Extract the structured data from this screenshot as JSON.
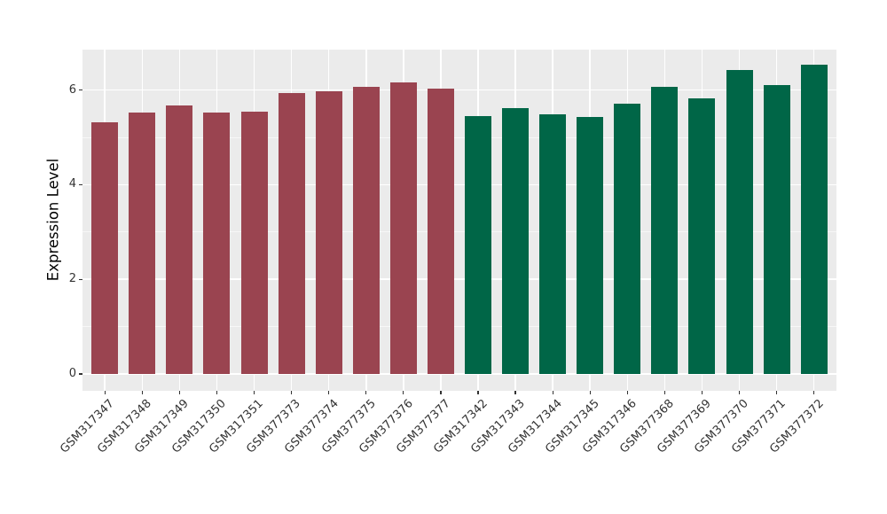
{
  "chart_data": {
    "type": "bar",
    "title": "",
    "xlabel": "",
    "ylabel": "Expression Level",
    "categories": [
      "GSM317347",
      "GSM317348",
      "GSM317349",
      "GSM317350",
      "GSM317351",
      "GSM377373",
      "GSM377374",
      "GSM377375",
      "GSM377376",
      "GSM377377",
      "GSM317342",
      "GSM317343",
      "GSM317344",
      "GSM317345",
      "GSM317346",
      "GSM377368",
      "GSM377369",
      "GSM377370",
      "GSM377371",
      "GSM377372"
    ],
    "values": [
      5.32,
      5.52,
      5.67,
      5.52,
      5.55,
      5.93,
      5.97,
      6.07,
      6.16,
      6.03,
      5.45,
      5.62,
      5.49,
      5.44,
      5.72,
      6.06,
      5.83,
      6.42,
      6.1,
      6.53
    ],
    "groups": [
      "group1",
      "group1",
      "group1",
      "group1",
      "group1",
      "group1",
      "group1",
      "group1",
      "group1",
      "group1",
      "group2",
      "group2",
      "group2",
      "group2",
      "group2",
      "group2",
      "group2",
      "group2",
      "group2",
      "group2"
    ],
    "group_colors": {
      "group1": "#9A4450",
      "group2": "#006647"
    },
    "ylim": [
      0,
      6.86
    ],
    "yticks_major": [
      0,
      2,
      4,
      6
    ],
    "yticks_minor": [
      1,
      3,
      5
    ],
    "grid": "on",
    "legend": "none",
    "panel_background": "#EBEBEB",
    "major_grid_color": "#FFFFFF",
    "minor_grid_color": "#F5F5F5",
    "x_label_rotation": -45
  }
}
